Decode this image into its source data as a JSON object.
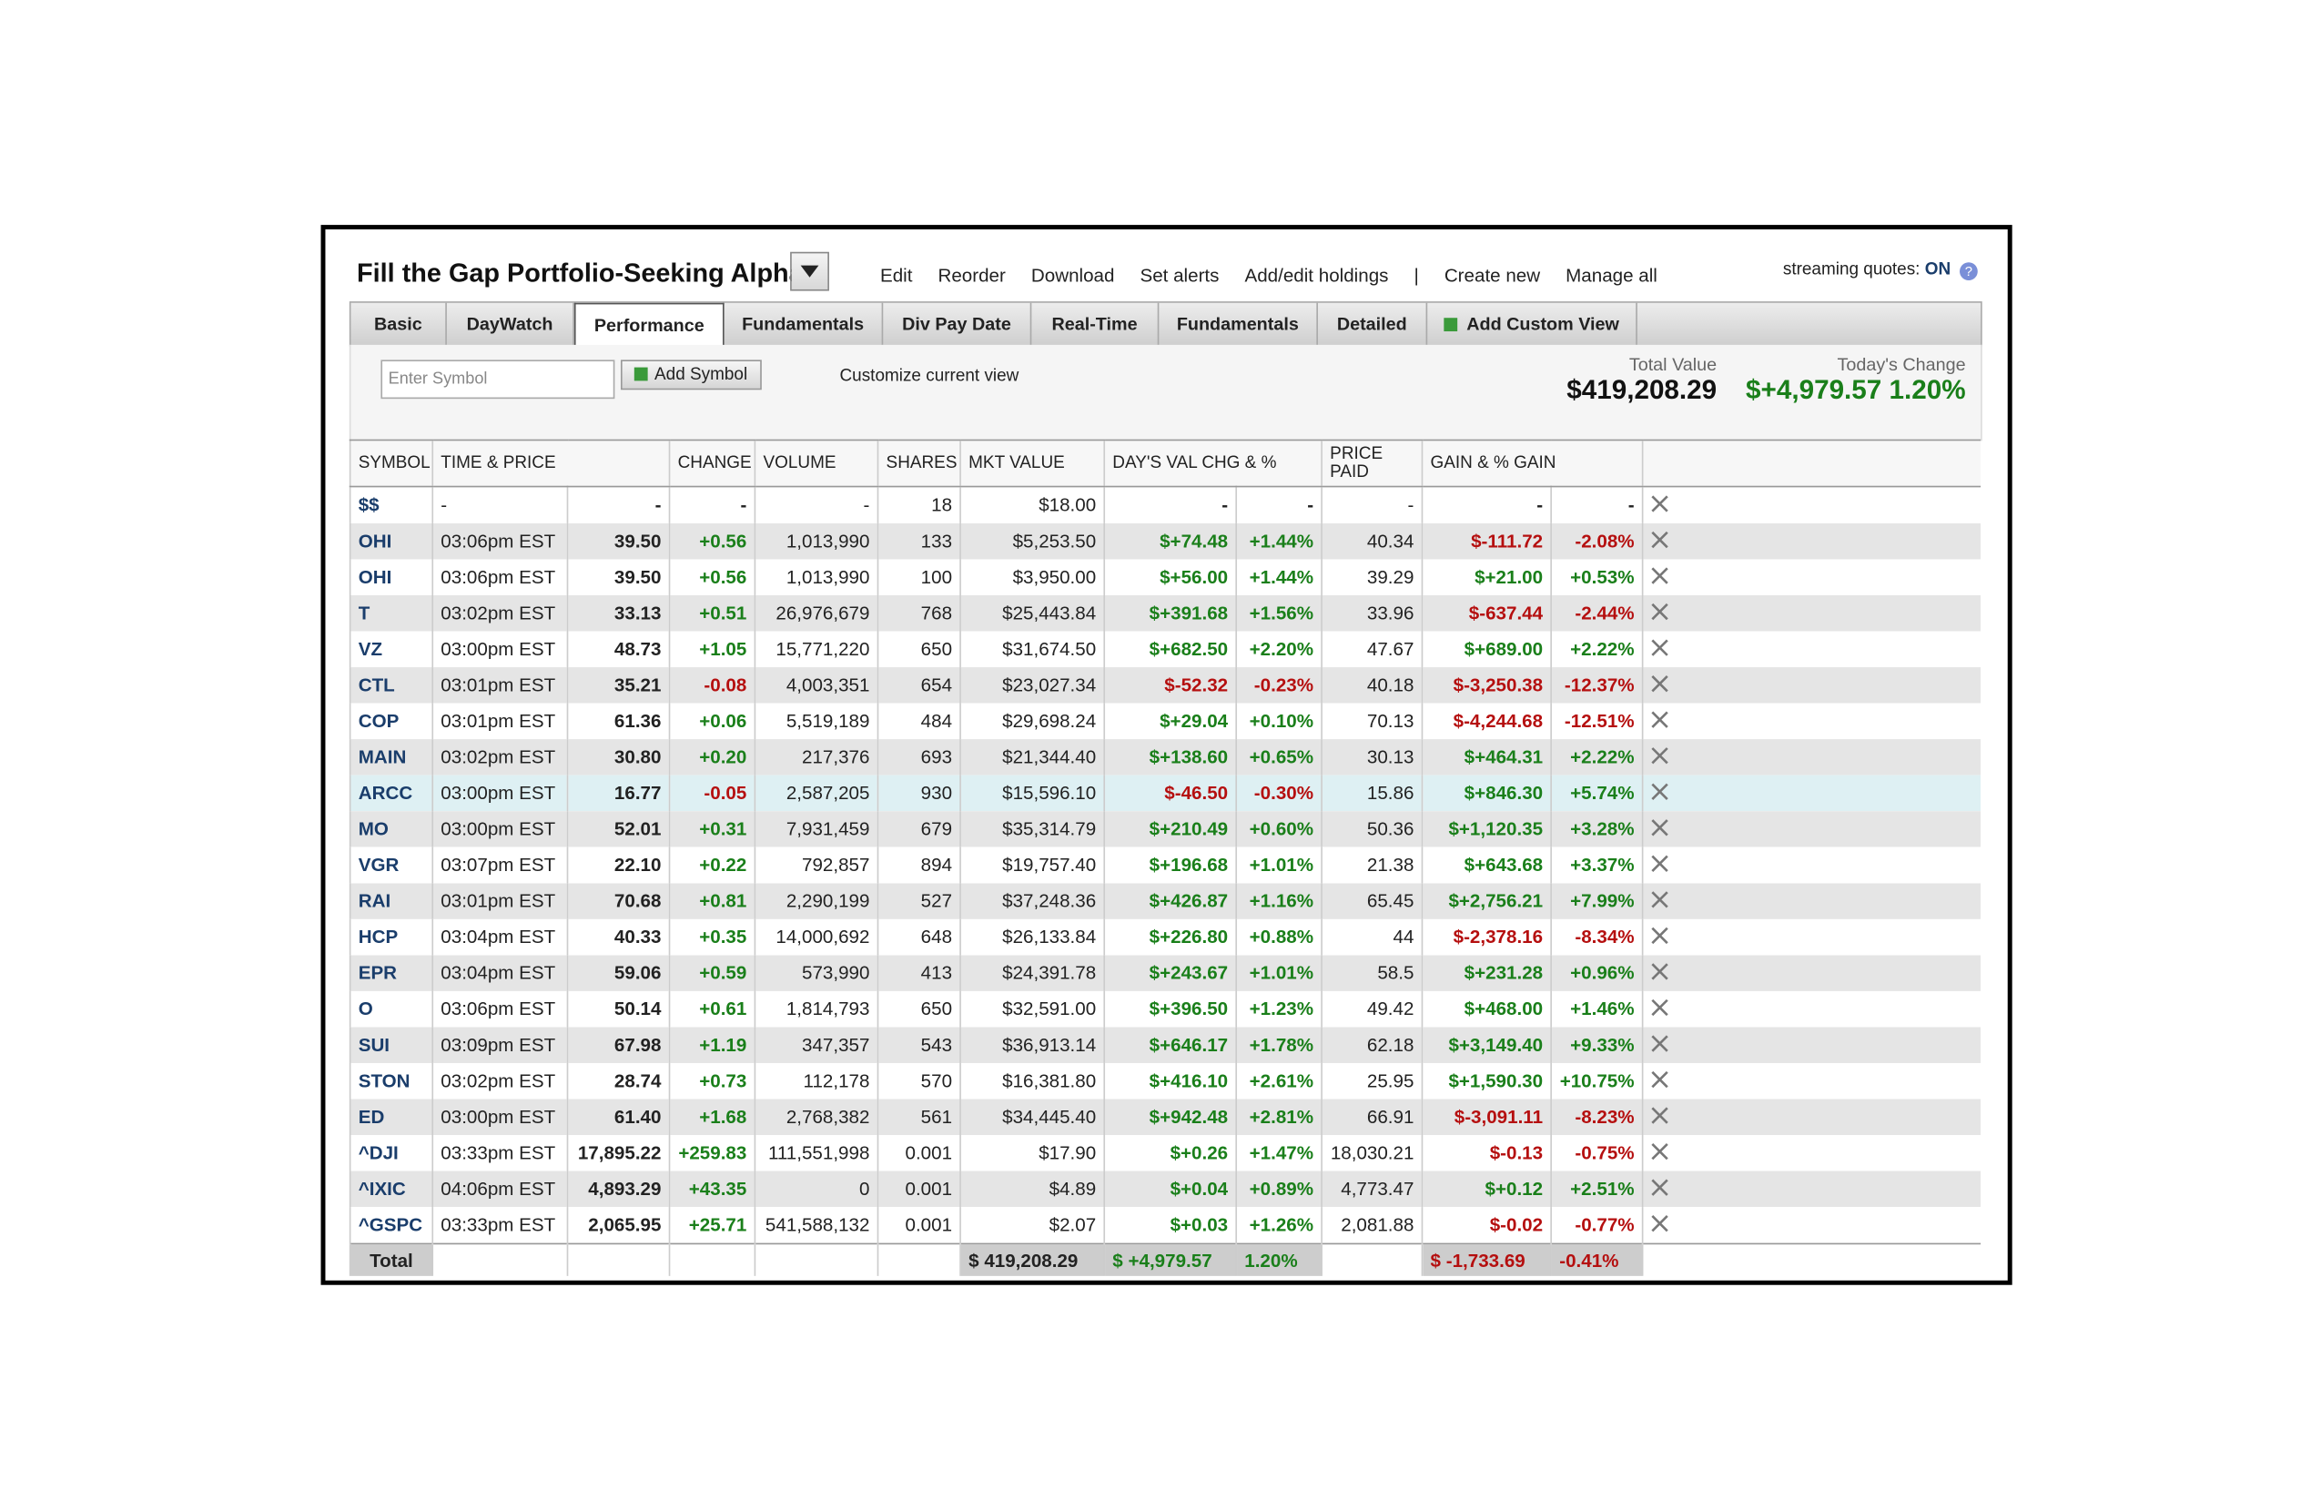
{
  "header": {
    "title": "Fill the Gap Portfolio-Seeking Alpha",
    "links": [
      "Edit",
      "Reorder",
      "Download",
      "Set alerts",
      "Add/edit holdings",
      "|",
      "Create new",
      "Manage all"
    ],
    "streaming_label": "streaming quotes:",
    "streaming_state": "ON"
  },
  "tabs": [
    "Basic",
    "DayWatch",
    "Performance",
    "Fundamentals",
    "Div Pay Date",
    "Real-Time",
    "Fundamentals",
    "Detailed",
    "Add Custom View"
  ],
  "active_tab": 2,
  "toolbar": {
    "input_placeholder": "Enter Symbol",
    "add_button": "Add Symbol",
    "customize": "Customize current view",
    "total_value_label": "Total Value",
    "total_value": "$419,208.29",
    "todays_change_label": "Today's Change",
    "todays_change": "$+4,979.57 1.20%"
  },
  "table": {
    "columns": [
      "SYMBOL",
      "TIME & PRICE",
      "CHANGE",
      "VOLUME",
      "SHARES",
      "MKT VALUE",
      "DAY'S VAL CHG & %",
      "PRICE PAID",
      "GAIN & % GAIN"
    ],
    "rows": [
      [
        "$$",
        "-",
        "-",
        "-",
        "-",
        "18",
        "$18.00",
        "-",
        "-",
        "-",
        "-",
        "-"
      ],
      [
        "OHI",
        "03:06pm EST",
        "39.50",
        "+0.56",
        "1,013,990",
        "133",
        "$5,253.50",
        "$+74.48",
        "+1.44%",
        "40.34",
        "$-111.72",
        "-2.08%"
      ],
      [
        "OHI",
        "03:06pm EST",
        "39.50",
        "+0.56",
        "1,013,990",
        "100",
        "$3,950.00",
        "$+56.00",
        "+1.44%",
        "39.29",
        "$+21.00",
        "+0.53%"
      ],
      [
        "T",
        "03:02pm EST",
        "33.13",
        "+0.51",
        "26,976,679",
        "768",
        "$25,443.84",
        "$+391.68",
        "+1.56%",
        "33.96",
        "$-637.44",
        "-2.44%"
      ],
      [
        "VZ",
        "03:00pm EST",
        "48.73",
        "+1.05",
        "15,771,220",
        "650",
        "$31,674.50",
        "$+682.50",
        "+2.20%",
        "47.67",
        "$+689.00",
        "+2.22%"
      ],
      [
        "CTL",
        "03:01pm EST",
        "35.21",
        "-0.08",
        "4,003,351",
        "654",
        "$23,027.34",
        "$-52.32",
        "-0.23%",
        "40.18",
        "$-3,250.38",
        "-12.37%"
      ],
      [
        "COP",
        "03:01pm EST",
        "61.36",
        "+0.06",
        "5,519,189",
        "484",
        "$29,698.24",
        "$+29.04",
        "+0.10%",
        "70.13",
        "$-4,244.68",
        "-12.51%"
      ],
      [
        "MAIN",
        "03:02pm EST",
        "30.80",
        "+0.20",
        "217,376",
        "693",
        "$21,344.40",
        "$+138.60",
        "+0.65%",
        "30.13",
        "$+464.31",
        "+2.22%"
      ],
      [
        "ARCC",
        "03:00pm EST",
        "16.77",
        "-0.05",
        "2,587,205",
        "930",
        "$15,596.10",
        "$-46.50",
        "-0.30%",
        "15.86",
        "$+846.30",
        "+5.74%"
      ],
      [
        "MO",
        "03:00pm EST",
        "52.01",
        "+0.31",
        "7,931,459",
        "679",
        "$35,314.79",
        "$+210.49",
        "+0.60%",
        "50.36",
        "$+1,120.35",
        "+3.28%"
      ],
      [
        "VGR",
        "03:07pm EST",
        "22.10",
        "+0.22",
        "792,857",
        "894",
        "$19,757.40",
        "$+196.68",
        "+1.01%",
        "21.38",
        "$+643.68",
        "+3.37%"
      ],
      [
        "RAI",
        "03:01pm EST",
        "70.68",
        "+0.81",
        "2,290,199",
        "527",
        "$37,248.36",
        "$+426.87",
        "+1.16%",
        "65.45",
        "$+2,756.21",
        "+7.99%"
      ],
      [
        "HCP",
        "03:04pm EST",
        "40.33",
        "+0.35",
        "14,000,692",
        "648",
        "$26,133.84",
        "$+226.80",
        "+0.88%",
        "44",
        "$-2,378.16",
        "-8.34%"
      ],
      [
        "EPR",
        "03:04pm EST",
        "59.06",
        "+0.59",
        "573,990",
        "413",
        "$24,391.78",
        "$+243.67",
        "+1.01%",
        "58.5",
        "$+231.28",
        "+0.96%"
      ],
      [
        "O",
        "03:06pm EST",
        "50.14",
        "+0.61",
        "1,814,793",
        "650",
        "$32,591.00",
        "$+396.50",
        "+1.23%",
        "49.42",
        "$+468.00",
        "+1.46%"
      ],
      [
        "SUI",
        "03:09pm EST",
        "67.98",
        "+1.19",
        "347,357",
        "543",
        "$36,913.14",
        "$+646.17",
        "+1.78%",
        "62.18",
        "$+3,149.40",
        "+9.33%"
      ],
      [
        "STON",
        "03:02pm EST",
        "28.74",
        "+0.73",
        "112,178",
        "570",
        "$16,381.80",
        "$+416.10",
        "+2.61%",
        "25.95",
        "$+1,590.30",
        "+10.75%"
      ],
      [
        "ED",
        "03:00pm EST",
        "61.40",
        "+1.68",
        "2,768,382",
        "561",
        "$34,445.40",
        "$+942.48",
        "+2.81%",
        "66.91",
        "$-3,091.11",
        "-8.23%"
      ],
      [
        "^DJI",
        "03:33pm EST",
        "17,895.22",
        "+259.83",
        "111,551,998",
        "0.001",
        "$17.90",
        "$+0.26",
        "+1.47%",
        "18,030.21",
        "$-0.13",
        "-0.75%"
      ],
      [
        "^IXIC",
        "04:06pm EST",
        "4,893.29",
        "+43.35",
        "0",
        "0.001",
        "$4.89",
        "$+0.04",
        "+0.89%",
        "4,773.47",
        "$+0.12",
        "+2.51%"
      ],
      [
        "^GSPC",
        "03:33pm EST",
        "2,065.95",
        "+25.71",
        "541,588,132",
        "0.001",
        "$2.07",
        "$+0.03",
        "+1.26%",
        "2,081.88",
        "$-0.02",
        "-0.77%"
      ]
    ],
    "total": {
      "label": "Total",
      "mkt_value": "$ 419,208.29",
      "days_val_chg": "$ +4,979.57",
      "days_val_pct": "1.20%",
      "gain": "$ -1,733.69",
      "gain_pct": "-0.41%"
    }
  }
}
